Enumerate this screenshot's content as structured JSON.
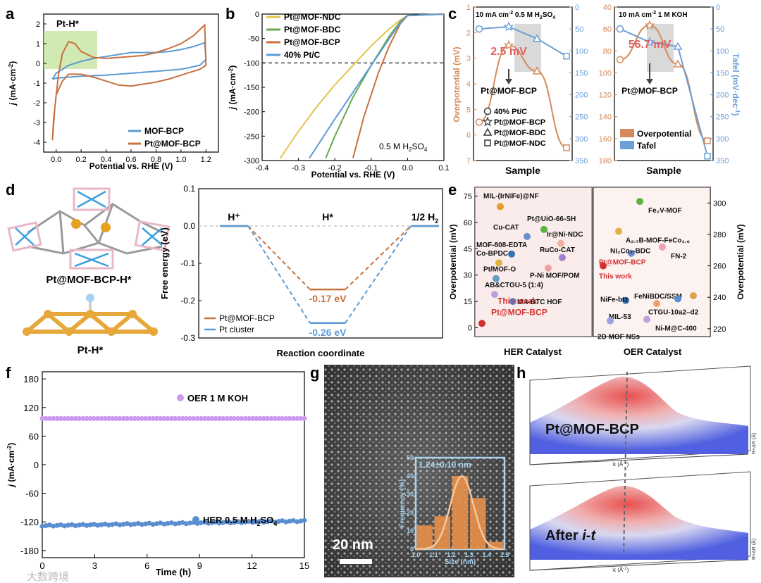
{
  "figure": {
    "watermark": "大数跨境",
    "colors": {
      "pt_orange": "#c8703d",
      "mof_blue": "#5b9bd5",
      "ndc_yellow": "#e3c44a",
      "bdc_green": "#6aa84f",
      "overpotential": "#d48a5c",
      "tafel": "#6c9fd8",
      "oer_purple": "#cc99ee",
      "her_blue": "#5a8fcf"
    }
  },
  "chart_data": [
    {
      "panel": "a",
      "type": "line",
      "annotation": "Pt-H*",
      "xlabel": "Potential vs. RHE (V)",
      "ylabel_italic": "j",
      "ylabel_rest": " (mA·cm",
      "ylabel_sup": "-2",
      "ylabel_end": ")",
      "xlim": [
        -0.1,
        1.3
      ],
      "ylim": [
        -4.5,
        2.5
      ],
      "xticks": [
        "0.0",
        "0.2",
        "0.4",
        "0.6",
        "0.8",
        "1.0",
        "1.2"
      ],
      "yticks": [
        "-4",
        "-3",
        "-2",
        "-1",
        "0",
        "1",
        "2"
      ],
      "series": [
        {
          "name": "MOF-BCP",
          "color_key": "mof_blue",
          "x": [
            -0.03,
            0.0,
            0.1,
            0.2,
            0.3,
            0.4,
            0.5,
            0.6,
            0.7,
            0.8,
            0.9,
            1.0,
            1.1,
            1.19,
            1.2,
            1.15,
            1.0,
            0.8,
            0.6,
            0.4,
            0.2,
            0.1,
            0.0,
            -0.03
          ],
          "y": [
            -0.8,
            -0.5,
            -0.1,
            0.1,
            0.25,
            0.35,
            0.45,
            0.55,
            0.55,
            0.55,
            0.6,
            0.7,
            0.85,
            1.05,
            0.2,
            -0.1,
            -0.3,
            -0.4,
            -0.5,
            -0.6,
            -0.65,
            -0.7,
            -0.75,
            -0.8
          ]
        },
        {
          "name": "Pt@MOF-BCP",
          "color_key": "pt_orange",
          "x": [
            -0.03,
            -0.01,
            0.02,
            0.05,
            0.1,
            0.15,
            0.2,
            0.3,
            0.4,
            0.5,
            0.6,
            0.7,
            0.8,
            0.9,
            1.0,
            1.1,
            1.19,
            1.2,
            1.15,
            1.1,
            1.0,
            0.9,
            0.8,
            0.7,
            0.6,
            0.5,
            0.4,
            0.3,
            0.2,
            0.1,
            0.05,
            0.0,
            -0.02,
            -0.03
          ],
          "y": [
            -3.9,
            -2.2,
            -0.5,
            0.5,
            1.1,
            1.0,
            0.6,
            0.3,
            0.25,
            0.3,
            0.35,
            0.4,
            0.55,
            0.75,
            1.0,
            1.4,
            1.95,
            -0.1,
            -0.3,
            -0.4,
            -0.6,
            -0.8,
            -0.95,
            -1.05,
            -1.15,
            -1.1,
            -0.9,
            -0.7,
            -0.55,
            -0.55,
            -0.9,
            -1.6,
            -2.8,
            -3.9
          ]
        }
      ]
    },
    {
      "panel": "b",
      "type": "line",
      "xlabel": "Potential vs. RHE (V)",
      "ylabel_italic": "j",
      "ylabel_rest": " (mA·cm",
      "ylabel_sup": "-2",
      "ylabel_end": ")",
      "annotation": "0.5 M H",
      "annotation_sub": "2",
      "annotation_end": "SO",
      "annotation_sub2": "4",
      "xlim": [
        -0.4,
        0.1
      ],
      "ylim": [
        -300,
        0
      ],
      "xticks": [
        "-0.4",
        "-0.3",
        "-0.2",
        "-0.1",
        "0.0",
        "0.1"
      ],
      "yticks": [
        "-300",
        "-250",
        "-200",
        "-150",
        "-100",
        "-50",
        "0"
      ],
      "ref_line": -100,
      "series": [
        {
          "name": "Pt@MOF-NDC",
          "color_key": "ndc_yellow",
          "x": [
            0.1,
            0.0,
            -0.02,
            -0.05,
            -0.1,
            -0.15,
            -0.2,
            -0.25,
            -0.3,
            -0.35
          ],
          "y": [
            0,
            -3,
            -12,
            -30,
            -65,
            -105,
            -145,
            -190,
            -240,
            -295
          ]
        },
        {
          "name": "Pt@MOF-BDC",
          "color_key": "bdc_green",
          "x": [
            0.1,
            0.0,
            -0.02,
            -0.05,
            -0.1,
            -0.15,
            -0.2,
            -0.225
          ],
          "y": [
            0,
            -3,
            -15,
            -45,
            -105,
            -170,
            -250,
            -295
          ]
        },
        {
          "name": "Pt@MOF-BCP",
          "color_key": "pt_orange",
          "x": [
            0.1,
            0.0,
            -0.02,
            -0.05,
            -0.08,
            -0.1,
            -0.12,
            -0.15
          ],
          "y": [
            0,
            -3,
            -20,
            -65,
            -120,
            -165,
            -210,
            -295
          ]
        },
        {
          "name": "40% Pt/C",
          "color_key": "mof_blue",
          "x": [
            0.1,
            0.0,
            -0.02,
            -0.05,
            -0.1,
            -0.15,
            -0.2,
            -0.27
          ],
          "y": [
            0,
            -3,
            -18,
            -50,
            -105,
            -160,
            -215,
            -295
          ]
        }
      ]
    },
    {
      "panel": "c",
      "type": "line",
      "subtitle_left": "10 mA cm",
      "subtitle_left_sup": "-2",
      "subtitle_left_end": " 0.5 M H",
      "subtitle_left_sub": "2",
      "subtitle_left_end2": "SO",
      "subtitle_left_sub2": "4",
      "subtitle_right": "10 mA cm",
      "subtitle_right_sup": "-2",
      "subtitle_right_end": "   1 M KOH",
      "xlabel": "Sample",
      "ylabel_left": "Overpotential (mV)",
      "ylabel_right": "Tafel (mV·dec",
      "ylabel_right_sup": "-1",
      "ylabel_right_end": ")",
      "left_panel": {
        "samples": [
          "40% Pt/C",
          "Pt@MOF-BCP",
          "Pt@MOF-BDC",
          "Pt@MOF-NDC"
        ],
        "markers": [
          "circle",
          "star",
          "triangle",
          "square"
        ],
        "overpotential": [
          5.5,
          2.5,
          3.5,
          6.5
        ],
        "tafel": [
          50,
          45,
          72,
          112
        ],
        "overpotential_lim": [
          7,
          1
        ],
        "tafel_lim": [
          350,
          0
        ],
        "overpotential_ticks": [
          "1",
          "2",
          "3",
          "4",
          "5",
          "6",
          "7"
        ],
        "tafel_ticks": [
          "0",
          "50",
          "100",
          "150",
          "200",
          "250",
          "300",
          "350"
        ],
        "highlight": "2.5 mV",
        "highlight_label": "Pt@MOF-BCP",
        "legend": [
          "40% Pt/C",
          "Pt@MOF-BCP",
          "Pt@MOF-BDC",
          "Pt@MOF-NDC"
        ]
      },
      "right_panel": {
        "overpotential": [
          88,
          56.7,
          92,
          162
        ],
        "tafel": [
          50,
          80,
          90,
          340
        ],
        "overpotential_lim": [
          180,
          40
        ],
        "tafel_lim": [
          350,
          0
        ],
        "overpotential_ticks": [
          "40",
          "60",
          "80",
          "100",
          "120",
          "140",
          "160",
          "180"
        ],
        "tafel_ticks": [
          "0",
          "50",
          "100",
          "150",
          "200",
          "250",
          "300",
          "350"
        ],
        "highlight": "56.7 mV",
        "highlight_label": "Pt@MOF-BCP",
        "legend": [
          "Overpotential",
          "Tafel"
        ]
      }
    },
    {
      "panel": "d",
      "type": "line",
      "structure_label_top": "Pt@MOF-BCP-H*",
      "structure_label_bottom": "Pt-H*",
      "xlabel": "Reaction coordinate",
      "ylabel": "Free energy (eV)",
      "ylim": [
        -0.3,
        0.1
      ],
      "yticks": [
        "0.1",
        "0.0",
        "-0.1",
        "-0.2",
        "-0.3"
      ],
      "states": [
        "H⁺",
        "H*",
        "1/2 H"
      ],
      "state3_sub": "2",
      "series": [
        {
          "name": "Pt@MOF-BCP",
          "color_key": "pt_orange",
          "values": [
            0.0,
            -0.17,
            0.0
          ],
          "label": "-0.17 eV"
        },
        {
          "name": "Pt cluster",
          "color_key": "mof_blue",
          "values": [
            0.0,
            -0.26,
            0.0
          ],
          "label": "-0.26 eV"
        }
      ]
    },
    {
      "panel": "e",
      "type": "scatter",
      "xlabel_left": "HER Catalyst",
      "xlabel_right": "OER Catalyst",
      "ylabel": "Overpotential (mV)",
      "left_ylim": [
        -5,
        80
      ],
      "left_yticks": [
        "0",
        "15",
        "30",
        "45",
        "60",
        "75"
      ],
      "right_ylim": [
        215,
        310
      ],
      "right_yticks": [
        "220",
        "240",
        "260",
        "280",
        "300"
      ],
      "her_points": [
        {
          "label": "MIL-(IrNiFe)@NF",
          "value": 69,
          "color": "#e0a030"
        },
        {
          "label": "Pt@UiO-66-SH",
          "value": 56,
          "color": "#5fb040"
        },
        {
          "label": "Cu-CAT",
          "value": 52,
          "color": "#6c8fcc"
        },
        {
          "label": "Ir@Ni-NDC",
          "value": 48,
          "color": "#f0b0a0"
        },
        {
          "label": "MOF-808-EDTA",
          "value": 42,
          "color": "#3a6fb0"
        },
        {
          "label": "RuCo-CAT",
          "value": 40,
          "color": "#a080d0"
        },
        {
          "label": "Co-BPDC",
          "value": 37,
          "color": "#e0b040"
        },
        {
          "label": "P-Ni MOF/POM",
          "value": 34,
          "color": "#f0a0a0"
        },
        {
          "label": "Pt/MOF-O",
          "value": 28,
          "color": "#5fa0c0"
        },
        {
          "label": "AB&CTGU-5 (1:4)",
          "value": 19,
          "color": "#c0a0e0"
        },
        {
          "label": "MA-BTC HOF",
          "value": 15,
          "color": "#5a8fd0"
        },
        {
          "label": "Pt@MOF-BCP",
          "value": 2.5,
          "color": "#d03030"
        }
      ],
      "her_this_work": "This work",
      "oer_points": [
        {
          "label": "Fe₂V-MOF",
          "value": 301,
          "color": "#5fb040"
        },
        {
          "label": "A₂.₇B-MOF-FeCo₁.₆",
          "value": 282,
          "color": "#e0b040"
        },
        {
          "label": "FN-2",
          "value": 272,
          "color": "#f0a0b0"
        },
        {
          "label": "Ni₂Co₂-BDC",
          "value": 268,
          "color": "#6c8fcc"
        },
        {
          "label": "Pt@MOF-BCP",
          "value": 260,
          "color": "#d03030"
        },
        {
          "label": "NiFe-btz",
          "value": 238,
          "color": "#3a6fb0"
        },
        {
          "label": "FeNiBDC/SSM",
          "value": 241,
          "color": "#e0a050"
        },
        {
          "label": "CTGU-10a2–d2",
          "value": 239,
          "color": "#5a8fd0"
        },
        {
          "label": "MIL-53",
          "value": 236,
          "color": "#f0a070"
        },
        {
          "label": "Ni-M@C-400",
          "value": 226,
          "color": "#c0a0e0"
        },
        {
          "label": "2D MOF NSs",
          "value": 225,
          "color": "#a0a0e0"
        }
      ],
      "oer_this_work": "This work"
    },
    {
      "panel": "f",
      "type": "scatter",
      "xlabel": "Time (h)",
      "ylabel_italic": "j",
      "ylabel_rest": " (mA·cm",
      "ylabel_sup": "-2",
      "ylabel_end": ")",
      "xlim": [
        0,
        15
      ],
      "ylim": [
        -195,
        195
      ],
      "xticks": [
        "0",
        "3",
        "6",
        "9",
        "12",
        "15"
      ],
      "yticks": [
        "-180",
        "-120",
        "-60",
        "0",
        "60",
        "120",
        "180"
      ],
      "series": [
        {
          "name": "OER 1 M KOH",
          "color_key": "oer_purple",
          "value": 97
        },
        {
          "name": "HER 0.5 M H",
          "name_sub": "2",
          "name_end": "SO",
          "name_sub2": "4",
          "color_key": "her_blue",
          "value_start": -128,
          "value_end": -118
        }
      ]
    },
    {
      "panel": "g",
      "type": "bar",
      "scale_bar": "20 nm",
      "inset_title": "1.24±0.10 nm",
      "xlabel": "Size (nm)",
      "ylabel": "Frequency (%)",
      "categories": [
        1.05,
        1.15,
        1.25,
        1.35,
        1.45
      ],
      "values": [
        13,
        18,
        40,
        28,
        4
      ],
      "xticks": [
        "1.0",
        "1.1",
        "1.2",
        "1.3",
        "1.4",
        "1.5"
      ],
      "yticks": [
        "0",
        "10",
        "20",
        "30",
        "40",
        "50"
      ],
      "ylim": [
        0,
        50
      ]
    },
    {
      "panel": "h",
      "type": "area",
      "top_label": "Pt@MOF-BCP",
      "bottom_label": "After ",
      "bottom_label_italic": "i-t",
      "axis_k": "k (Å",
      "axis_k_sup": "-1",
      "axis_k_end": ")",
      "axis_r": "R+ΔR (Å)"
    }
  ]
}
